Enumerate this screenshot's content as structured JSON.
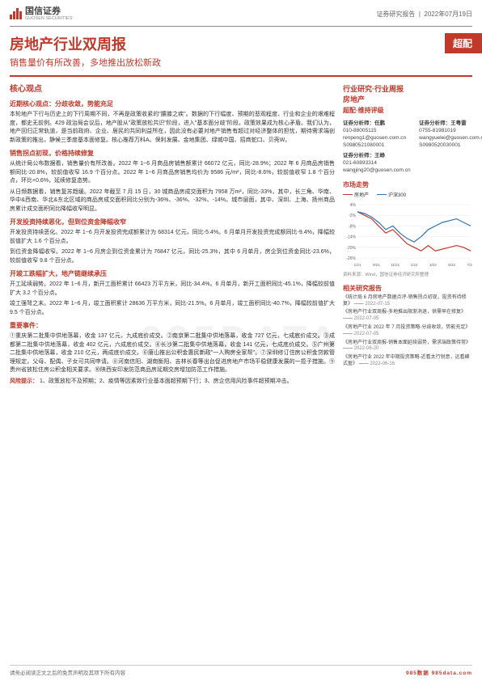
{
  "header": {
    "company_cn": "国信证券",
    "company_en": "GUOSEN SECURITIES",
    "doc_type": "证券研究报告",
    "date": "2022年07月19日",
    "logo_color": "#c0392b"
  },
  "title": {
    "main": "房地产行业双周报",
    "sub": "销售量价有所改善，多地推出放松新政",
    "tag": "超配"
  },
  "left": {
    "core_h": "核心观点",
    "s1_h": "近期核心观点：分歧收敛，势能充足",
    "s1_p": "本轮地产下行与历史上的下行周期不同，不再是政策收紧的\"腰膝之疾\"。数据的下行幅度、预期的悲观程度、行业和企业的艰难程度，都史无前例。429 政治局会议后，地产股从\"政策放松共识\"阶段，进入\"基本面分歧\"阶段。政策效果成为核心矛盾。我们认为，地产回归正常轨道，是当前政府、企业、居民的共同利益所在，因此没有必要对地产销售有超过对经济整体的担忧，期待需求端创新政策的推出，静候三季度基本面修复。核心推荐万科A、保利发展、金地集团、绿城中国、招商蛇口、贝壳W。",
    "s2_h": "销售拐点初现，价格持续修复",
    "s2_p1": "从统计局公布数据看，销售量价有所改善。2022 年 1~6 月商品房销售额累计 66072 亿元，同比-28.9%；2022 年 6 月商品房销售额同比-20.8%，较前值收窄 16.9 个百分点。2022 年 1~6 月商品房销售均价为 9586 元/m²，同比-8.6%，较前值收窄 1.8 个百分点，环比+0.6%，延续修复态势。",
    "s2_p2": "从日频数据看，销售复苏趋缓。2022 年截至 7 月 15 日，30 城商品房成交面积为 7958 万m²，同比-33%，其中，长三角、华南、华中&西南、华北&东北区域的商品房成交面积同比分别为-36%、-36%、-32%、-14%。城市层面，其中、深圳、上海、扬州商品房累计成交面积同比降幅收窄明显。",
    "s3_h": "开发投资持续恶化，但到位资金降幅收窄",
    "s3_p1": "开发投资持续恶化。2022 年 1~6 月开发投资完成额累计为 68314 亿元，同比-5.4%。6 月单月开发投资完成额同比-9.4%，降幅较前值扩大 1.6 个百分点。",
    "s3_p2": "到位资金降幅收窄。2022 年 1~6 月房企到位资金累计为 76847 亿元，同比-25.3%，其中 6 月单月，房企到位资金同比-23.6%，较前值收窄 9.8 个百分点。",
    "s4_h": "开竣工跌幅扩大，地产链继续承压",
    "s4_p1": "开工延续弱势。2022 年 1~6 月，新开工面积累计 66423 万平方米，同比-34.4%。6 月单月，新开工面积同比-45.1%，降幅较前值扩大 3.2 个百分点。",
    "s4_p2": "竣工强弩之末。2022 年 1~6 月，竣工面积累计 28636 万平方米，同比-21.5%。6 月单月，竣工面积同比-40.7%，降幅较前值扩大 9.5 个百分点。",
    "s5_h": "重要事件：",
    "s5_p": "①重庆第二批集中供地落幕，收金 137 亿元，九成底价成交。②南京第二批集中供地落幕，收金 727 亿元，七成底价成交。③成都第二批集中供地落幕，收金 402 亿元，六成底价成交。④长沙第二批集中供地落幕，收金 141 亿元，七成底价成交。⑤广州第二批集中供地落幕，收金 210 亿元，两成底价成交。⑥唐山推出公积金惠民新政\"一人购房全家帮\"。⑦深圳修订住房公积金贷款管理规定，父母、配偶、子女可共同申请。⑧河南信阳、湖南衡阳、吉林长春等出台促进房地产市场平稳健康发展的一揽子措施。⑨贵州省放松住房公积金相关要求。⑩陕西安印发防范商品房延期交房增加防范工作措施。",
    "s6_h": "风险提示：",
    "s6_p": "1、政策放松不及预期；2、疫情等因素致行业基本面超预期下行；3、房企信用风险事件超预期冲击。"
  },
  "right": {
    "cat1": "行业研究·行业周报",
    "cat2": "房地产",
    "rating": "超配·维持评级",
    "analysts": [
      {
        "name": "证券分析师：任鹏",
        "phone": "010-88005115",
        "email": "renpeng1@guosen.com.cn",
        "cert": "S0980521080001"
      },
      {
        "name": "证券分析师：王粤雷",
        "phone": "0755-81981019",
        "email": "wangyuelei@guosen.com.cn",
        "cert": "S0980520030001"
      },
      {
        "name": "证券分析师：王峥",
        "phone": "021-60893314",
        "email": "wangjing20@guosen.com.cn",
        "cert": ""
      }
    ],
    "chart_h": "市场走势",
    "chart": {
      "series": [
        {
          "label": "房地产",
          "color": "#c0392b",
          "points": [
            0,
            -2,
            -4,
            -8,
            -12,
            -10,
            -14,
            -18,
            -20,
            -22,
            -19,
            -22,
            -21,
            -20,
            -19,
            -20,
            -22
          ]
        },
        {
          "label": "沪深300",
          "color": "#2e75b6",
          "points": [
            0,
            -1,
            -3,
            -6,
            -10,
            -8,
            -12,
            -15,
            -17,
            -14,
            -10,
            -8,
            -6,
            -5,
            -4,
            -6,
            -8
          ]
        }
      ],
      "y_min": -26,
      "y_max": 4,
      "y_step": 6,
      "x_labels": [
        "1/21",
        "9/21",
        "11/21",
        "1/22",
        "3/22",
        "5/22",
        "7/22"
      ],
      "bg": "#ffffff",
      "grid": "#e8e8e8"
    },
    "chart_src": "资料来源：Wind，国信证券经济研究所整理",
    "reports_h": "相关研究报告",
    "reports": [
      {
        "t": "《统计局 6 月房地产数据点评-销售拐点初现，投资有待修复》",
        "d": "2022-07-15"
      },
      {
        "t": "《房地产行业双周报-多地推出限渐消退，供需早在修复》",
        "d": "2022-07-05"
      },
      {
        "t": "《房地产行业 2022 年 7 月投资策略-分歧收敛，势能充足》",
        "d": "2022-07-05"
      },
      {
        "t": "《房地产行业双周报-销售本面延续弱势，需求端政策待常》",
        "d": "2022-06-20"
      },
      {
        "t": "《房地产行业 2022 年中期投资策略-近看太行锐意，远看峰式盈》",
        "d": "2022-06-16"
      }
    ]
  },
  "footer": {
    "left": "请务必阅读正文之后的免责声明及其项下所有内容",
    "right": "985数据 985data.com"
  },
  "watermark": "985DATA"
}
